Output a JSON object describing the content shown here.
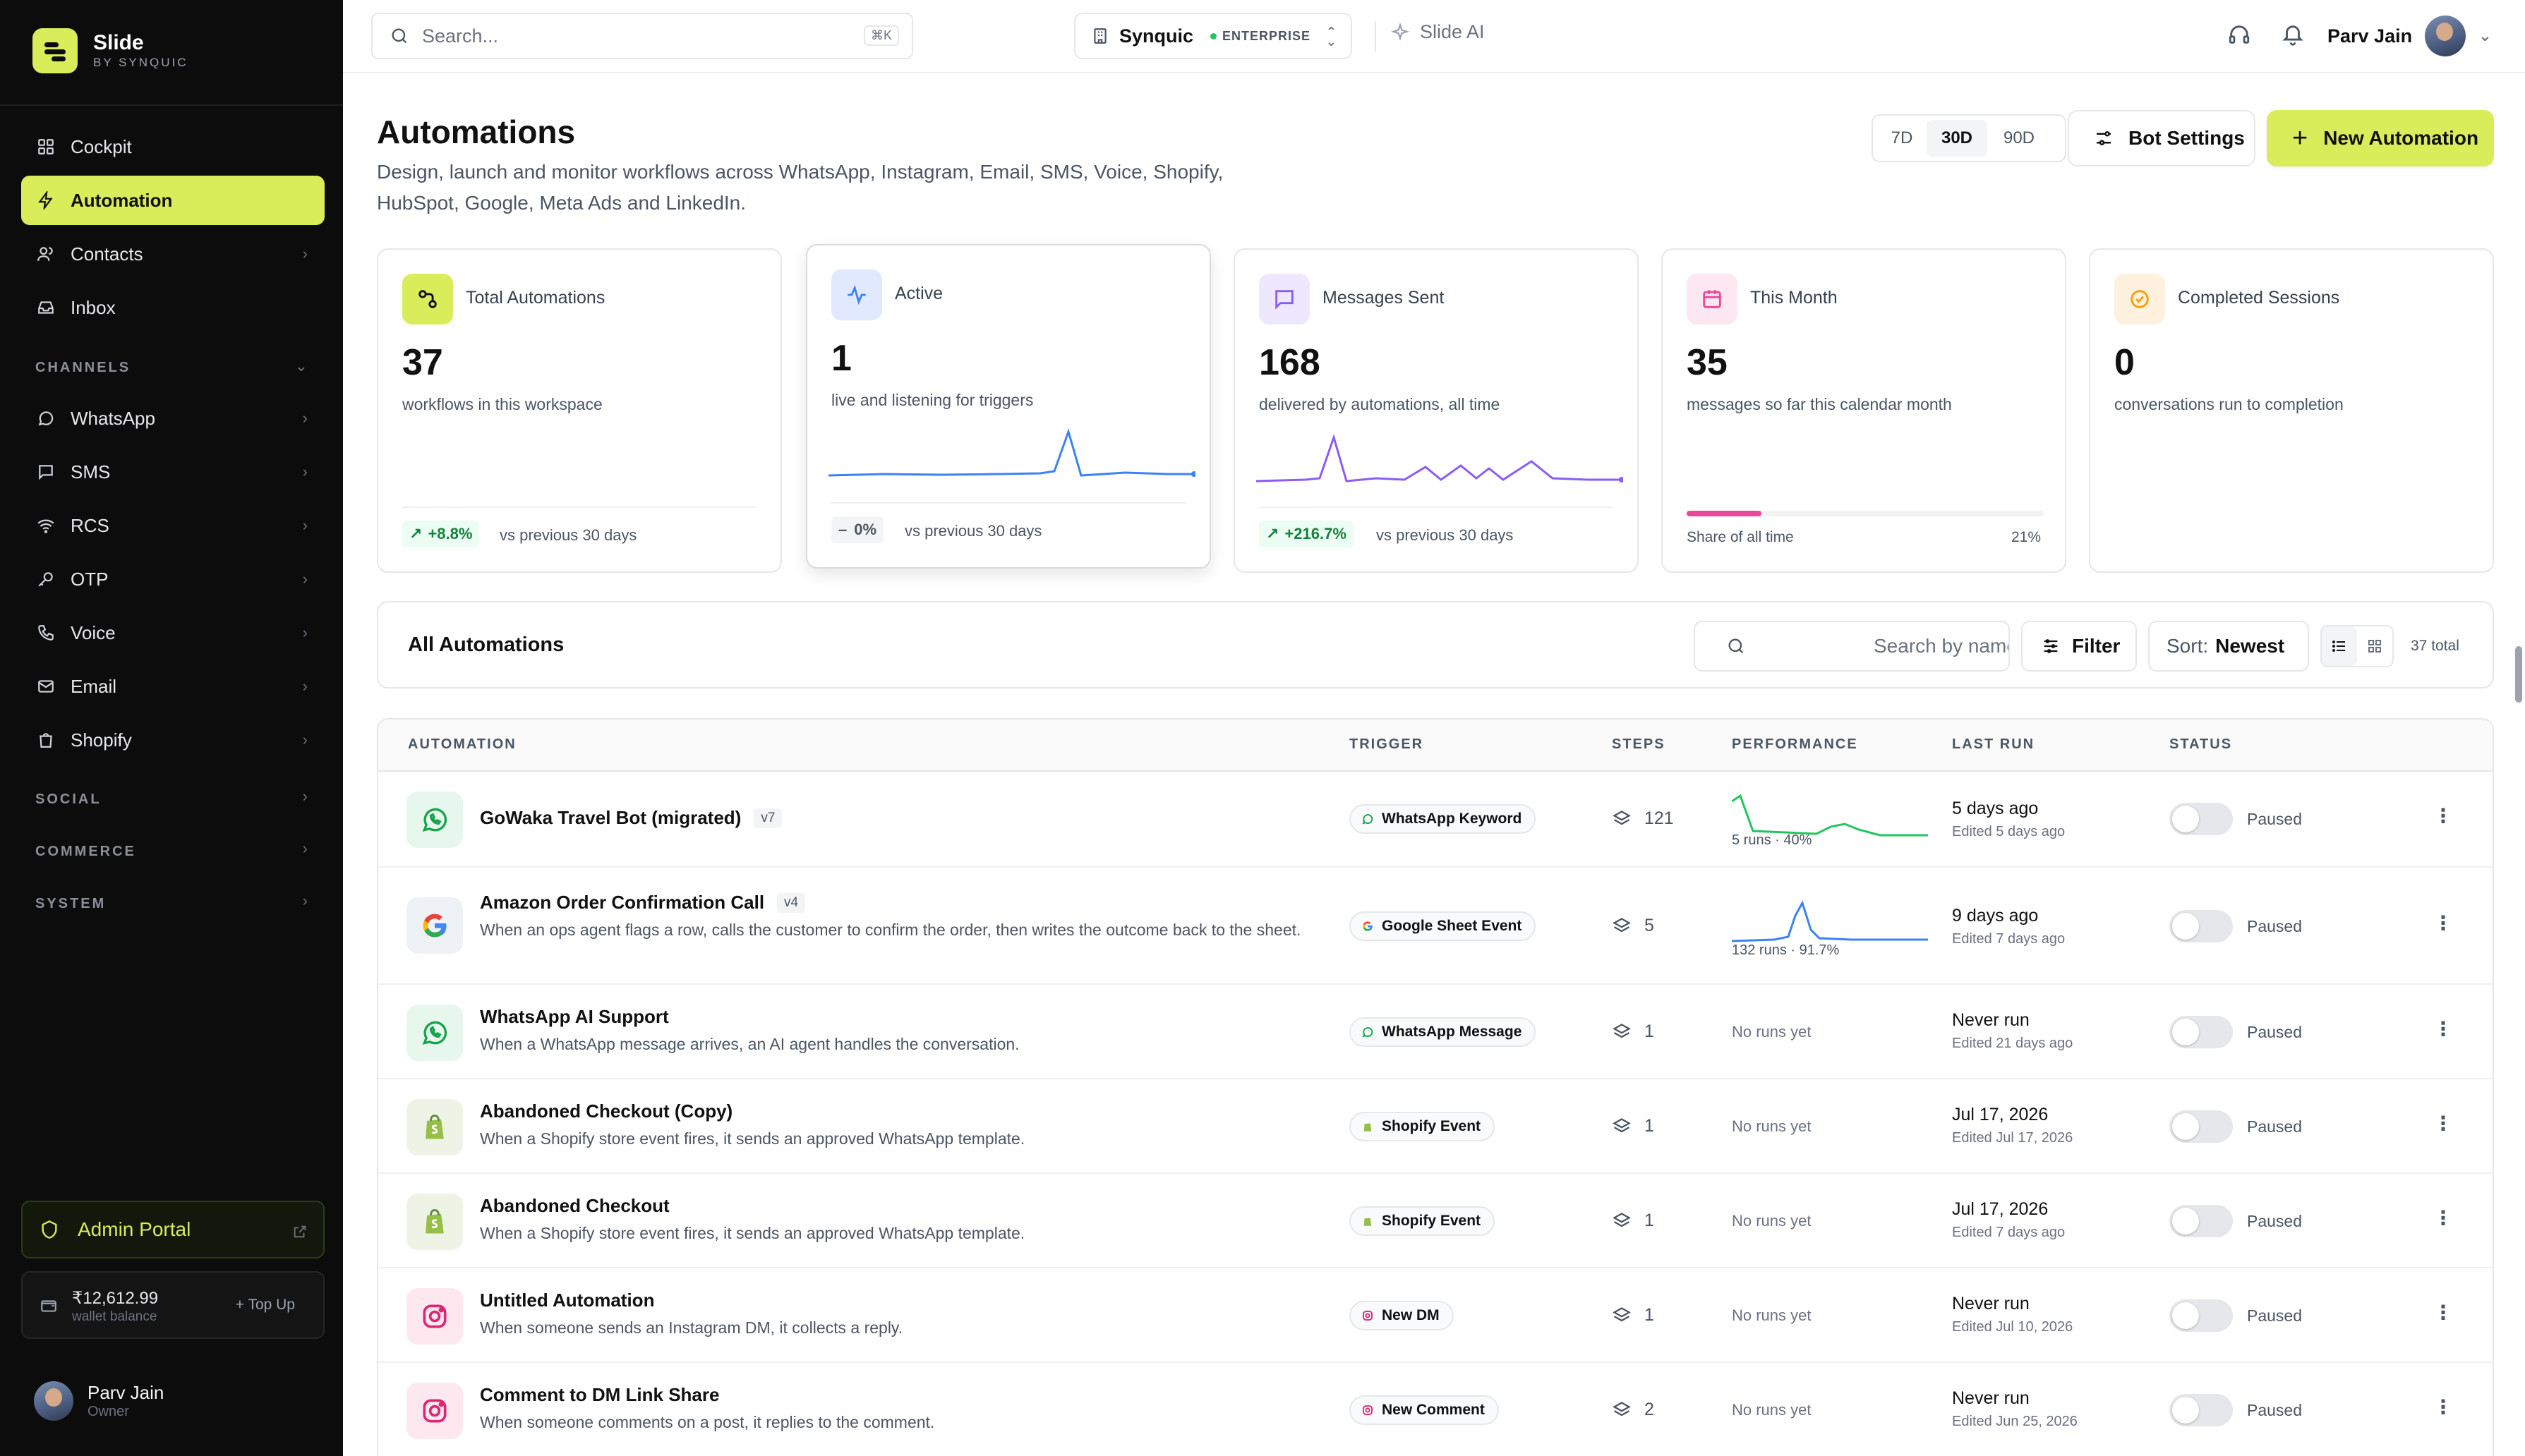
{
  "brand": {
    "name": "Slide",
    "sub": "BY SYNQUIC"
  },
  "sidebar": {
    "items": [
      {
        "label": "Cockpit"
      },
      {
        "label": "Automation"
      },
      {
        "label": "Contacts"
      },
      {
        "label": "Inbox"
      }
    ],
    "channels_label": "CHANNELS",
    "channels": [
      {
        "label": "WhatsApp"
      },
      {
        "label": "SMS"
      },
      {
        "label": "RCS"
      },
      {
        "label": "OTP"
      },
      {
        "label": "Voice"
      },
      {
        "label": "Email"
      },
      {
        "label": "Shopify"
      }
    ],
    "sections": [
      {
        "label": "SOCIAL"
      },
      {
        "label": "COMMERCE"
      },
      {
        "label": "SYSTEM"
      }
    ],
    "admin_portal": "Admin Portal",
    "wallet": {
      "amount": "₹12,612.99",
      "label": "wallet balance",
      "topup": "Top Up"
    },
    "user": {
      "name": "Parv Jain",
      "role": "Owner"
    }
  },
  "topbar": {
    "search_placeholder": "Search...",
    "search_kbd": "⌘K",
    "workspace": "Synquic",
    "plan": "ENTERPRISE",
    "slide_ai": "Slide AI",
    "user_name": "Parv Jain"
  },
  "header": {
    "title": "Automations",
    "description": "Design, launch and monitor workflows across WhatsApp, Instagram, Email, SMS, Voice, Shopify, HubSpot, Google, Meta Ads and LinkedIn.",
    "ranges": [
      "7D",
      "30D",
      "90D"
    ],
    "selected_range": "30D",
    "bot_settings": "Bot Settings",
    "new_automation": "New Automation"
  },
  "stats": [
    {
      "label": "Total Automations",
      "value": "37",
      "desc": "workflows in this workspace",
      "delta": "+8.8%",
      "vs": "vs previous 30 days"
    },
    {
      "label": "Active",
      "value": "1",
      "desc": "live and listening for triggers",
      "delta": "0%",
      "vs": "vs previous 30 days"
    },
    {
      "label": "Messages Sent",
      "value": "168",
      "desc": "delivered by automations, all time",
      "delta": "+216.7%",
      "vs": "vs previous 30 days"
    },
    {
      "label": "This Month",
      "value": "35",
      "desc": "messages so far this calendar month",
      "share_label": "Share of all time",
      "share_pct": "21%"
    },
    {
      "label": "Completed Sessions",
      "value": "0",
      "desc": "conversations run to completion"
    }
  ],
  "colors": {
    "accent": "#d9ec5a",
    "active_line": "#3b82f6",
    "messages_line": "#8b5cf6",
    "month_bar": "#ec4899",
    "perf_green": "#22c55e"
  },
  "list": {
    "title": "All Automations",
    "search_placeholder": "Search by name or description",
    "filter": "Filter",
    "sort_label": "Sort:",
    "sort_value": "Newest",
    "total": "37 total"
  },
  "table": {
    "columns": [
      "AUTOMATION",
      "TRIGGER",
      "STEPS",
      "PERFORMANCE",
      "LAST RUN",
      "STATUS"
    ],
    "rows": [
      {
        "icon": "whatsapp-icon",
        "name": "GoWaka Travel Bot (migrated)",
        "version": "v7",
        "desc": "",
        "trigger": "WhatsApp Keyword",
        "steps": "121",
        "perf": "5 runs · 40%",
        "last_run": "5 days ago",
        "edited": "Edited 5 days ago",
        "status": "Paused"
      },
      {
        "icon": "google-icon",
        "name": "Amazon Order Confirmation Call",
        "version": "v4",
        "desc": "When an ops agent flags a row, calls the customer to confirm the order, then writes the outcome back to the sheet.",
        "trigger": "Google Sheet Event",
        "steps": "5",
        "perf": "132 runs · 91.7%",
        "last_run": "9 days ago",
        "edited": "Edited 7 days ago",
        "status": "Paused"
      },
      {
        "icon": "whatsapp-icon",
        "name": "WhatsApp AI Support",
        "version": "",
        "desc": "When a WhatsApp message arrives, an AI agent handles the conversation.",
        "trigger": "WhatsApp Message",
        "steps": "1",
        "perf": "No runs yet",
        "last_run": "Never run",
        "edited": "Edited 21 days ago",
        "status": "Paused"
      },
      {
        "icon": "shopify-icon",
        "name": "Abandoned Checkout (Copy)",
        "version": "",
        "desc": "When a Shopify store event fires, it sends an approved WhatsApp template.",
        "trigger": "Shopify Event",
        "steps": "1",
        "perf": "No runs yet",
        "last_run": "Jul 17, 2026",
        "edited": "Edited Jul 17, 2026",
        "status": "Paused"
      },
      {
        "icon": "shopify-icon",
        "name": "Abandoned Checkout",
        "version": "",
        "desc": "When a Shopify store event fires, it sends an approved WhatsApp template.",
        "trigger": "Shopify Event",
        "steps": "1",
        "perf": "No runs yet",
        "last_run": "Jul 17, 2026",
        "edited": "Edited 7 days ago",
        "status": "Paused"
      },
      {
        "icon": "instagram-icon",
        "name": "Untitled Automation",
        "version": "",
        "desc": "When someone sends an Instagram DM, it collects a reply.",
        "trigger": "New DM",
        "steps": "1",
        "perf": "No runs yet",
        "last_run": "Never run",
        "edited": "Edited Jul 10, 2026",
        "status": "Paused"
      },
      {
        "icon": "instagram-icon",
        "name": "Comment to DM Link Share",
        "version": "",
        "desc": "When someone comments on a post, it replies to the comment.",
        "trigger": "New Comment",
        "steps": "2",
        "perf": "No runs yet",
        "last_run": "Never run",
        "edited": "Edited Jun 25, 2026",
        "status": "Paused"
      }
    ]
  }
}
